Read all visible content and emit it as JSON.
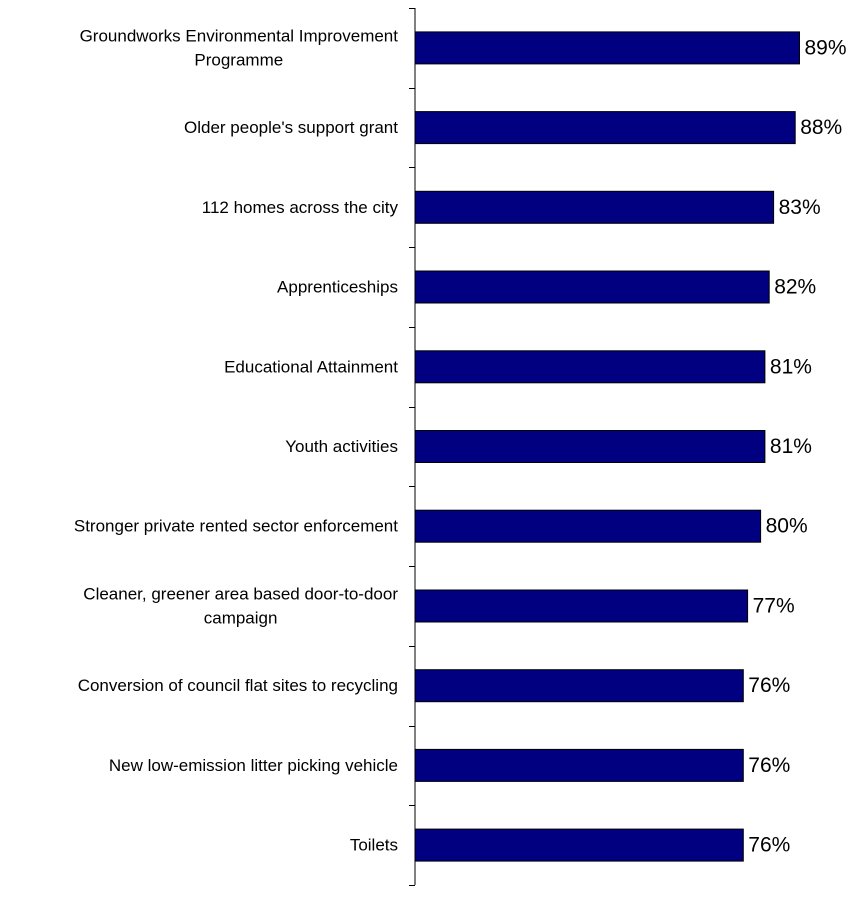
{
  "chart_data": {
    "type": "bar",
    "orientation": "horizontal",
    "categories": [
      "Groundworks Environmental Improvement Programme",
      "Older people's support grant",
      "112 homes across the city",
      "Apprenticeships",
      "Educational Attainment",
      "Youth activities",
      "Stronger private rented sector enforcement",
      "Cleaner, greener area based door-to-door campaign",
      "Conversion of council flat sites to recycling",
      "New low-emission litter picking vehicle",
      "Toilets"
    ],
    "category_lines": [
      [
        "Groundworks Environmental Improvement",
        "Programme"
      ],
      [
        "Older people's support grant"
      ],
      [
        "112 homes across the city"
      ],
      [
        "Apprenticeships"
      ],
      [
        "Educational Attainment"
      ],
      [
        "Youth activities"
      ],
      [
        "Stronger private rented sector enforcement"
      ],
      [
        "Cleaner, greener area based door-to-door",
        "campaign"
      ],
      [
        "Conversion of council flat sites to recycling"
      ],
      [
        "New low-emission litter picking vehicle"
      ],
      [
        "Toilets"
      ]
    ],
    "values": [
      89,
      88,
      83,
      82,
      81,
      81,
      80,
      77,
      76,
      76,
      76
    ],
    "value_labels": [
      "89%",
      "88%",
      "83%",
      "82%",
      "81%",
      "81%",
      "80%",
      "77%",
      "76%",
      "76%",
      "76%"
    ],
    "xlim": [
      0,
      100
    ],
    "grid": false,
    "legend": "none",
    "bar_color": "#000080",
    "bar_edge_color": "#000000",
    "axis_color": "#000000"
  }
}
